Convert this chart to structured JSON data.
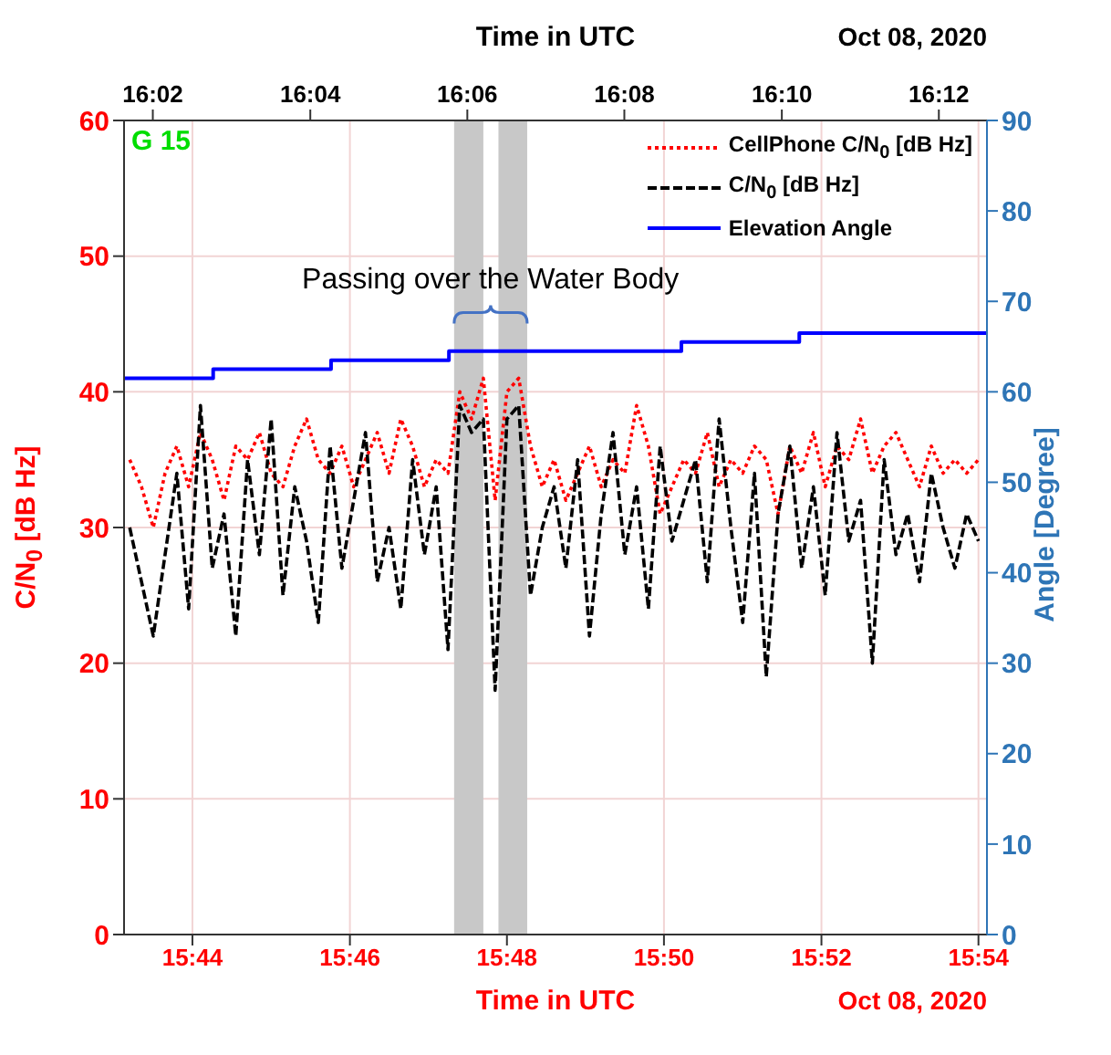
{
  "chart_data": {
    "type": "line",
    "xlabel": "Time in UTC",
    "x2label": "Time in UTC",
    "ylabel": "C/N$_{0}$ [dB Hz]",
    "y2label": "Angle [Degree]",
    "x": [
      15.72,
      15.7225,
      15.725,
      15.7275,
      15.73,
      15.7325,
      15.735,
      15.7375,
      15.74,
      15.7425,
      15.745,
      15.7475,
      15.75,
      15.7525,
      15.755,
      15.7575,
      15.76,
      15.7625,
      15.765,
      15.7675,
      15.77,
      15.7725,
      15.775,
      15.7775,
      15.78,
      15.7825,
      15.785,
      15.7875,
      15.79,
      15.7925,
      15.795,
      15.7975,
      15.8,
      15.8025,
      15.805,
      15.8075,
      15.81,
      15.8125,
      15.815,
      15.8175,
      15.82,
      15.8225,
      15.825,
      15.8275,
      15.83,
      15.8325,
      15.835,
      15.8375,
      15.84,
      15.8425,
      15.845,
      15.8475,
      15.85,
      15.8525,
      15.855,
      15.8575,
      15.86,
      15.8625,
      15.865,
      15.8675,
      15.87,
      15.8725,
      15.875,
      15.8775,
      15.88,
      15.8825,
      15.885,
      15.8875,
      15.89,
      15.8925,
      15.895,
      15.8975,
      15.9
    ],
    "series": [
      {
        "name": "CellPhone C/N$_{0}$ [dB Hz]",
        "color": "#ff0000",
        "line_style": "dotted",
        "values": [
          35,
          33,
          30,
          34,
          36,
          33,
          37,
          35,
          32,
          36,
          35,
          37,
          34,
          33,
          36,
          38,
          35,
          34,
          36,
          33,
          35,
          37,
          34,
          38,
          36,
          33,
          35,
          34,
          40,
          38,
          41,
          32,
          40,
          41,
          36,
          33,
          35,
          32,
          34,
          36,
          33,
          35,
          34,
          39,
          36,
          31,
          33,
          35,
          34,
          37,
          33,
          35,
          34,
          36,
          35,
          31,
          36,
          34,
          37,
          33,
          36,
          35,
          38,
          34,
          36,
          37,
          35,
          33,
          36,
          34,
          35,
          34,
          35
        ]
      },
      {
        "name": "C/N$_{0}$ [dB Hz]",
        "color": "#000000",
        "line_style": "dashed",
        "values": [
          30,
          26,
          22,
          28,
          34,
          24,
          39,
          27,
          31,
          22,
          35,
          28,
          38,
          25,
          33,
          29,
          23,
          36,
          27,
          32,
          37,
          26,
          30,
          24,
          35,
          28,
          33,
          21,
          39,
          37,
          38,
          18,
          38,
          39,
          25,
          30,
          33,
          27,
          35,
          22,
          31,
          37,
          28,
          33,
          24,
          36,
          29,
          32,
          35,
          26,
          38,
          30,
          23,
          34,
          19,
          31,
          36,
          27,
          33,
          25,
          37,
          29,
          32,
          20,
          35,
          28,
          31,
          26,
          34,
          30,
          27,
          31,
          29
        ]
      },
      {
        "name": "Elevation Angle",
        "type": "step",
        "axis": "y2",
        "color": "#0000ff",
        "line_style": "solid",
        "x": [
          15.7188,
          15.7377,
          15.7627,
          15.7877,
          15.837,
          15.862,
          15.9018
        ],
        "values": [
          61.5,
          62.5,
          63.5,
          64.5,
          65.5,
          66.5,
          66.5
        ]
      }
    ],
    "xlim": [
      15.7188,
      15.9018
    ],
    "xticks": [
      {
        "value": 15.7333,
        "label": "15:44"
      },
      {
        "value": 15.7667,
        "label": "15:46"
      },
      {
        "value": 15.8,
        "label": "15:48"
      },
      {
        "value": 15.8333,
        "label": "15:50"
      },
      {
        "value": 15.8667,
        "label": "15:52"
      },
      {
        "value": 15.9,
        "label": "15:54"
      }
    ],
    "x2lim": [
      16.0272,
      16.2102
    ],
    "x2ticks": [
      {
        "value": 16.0333,
        "label": "16:02"
      },
      {
        "value": 16.0667,
        "label": "16:04"
      },
      {
        "value": 16.1,
        "label": "16:06"
      },
      {
        "value": 16.1333,
        "label": "16:08"
      },
      {
        "value": 16.1667,
        "label": "16:10"
      },
      {
        "value": 16.2,
        "label": "16:12"
      }
    ],
    "ylim": [
      0,
      60
    ],
    "yticks": [
      0,
      10,
      20,
      30,
      40,
      50,
      60
    ],
    "y2lim": [
      0,
      90
    ],
    "y2ticks": [
      0,
      10,
      20,
      30,
      40,
      50,
      60,
      70,
      80,
      90
    ],
    "bands": [
      {
        "axis": "x",
        "from": 15.7888,
        "to": 15.795,
        "color": "#c8c8c8"
      },
      {
        "axis": "x",
        "from": 15.7982,
        "to": 15.8043,
        "color": "#c8c8c8"
      }
    ],
    "annotations": [
      "G 15",
      {
        "text": "Passing over the Water Body",
        "x": 15.7965,
        "y": 48
      },
      "Oct 08, 2020",
      "Oct 08, 2020"
    ],
    "grid": true,
    "legend": "top right",
    "marker": "none"
  }
}
